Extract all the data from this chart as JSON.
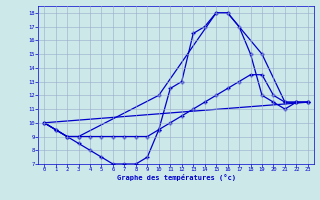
{
  "background_color": "#cce8e8",
  "grid_color": "#99aacc",
  "line_color": "#0000cc",
  "title": "Graphe des températures (°c)",
  "xlim": [
    -0.5,
    23.5
  ],
  "ylim": [
    7,
    18.5
  ],
  "xticks": [
    0,
    1,
    2,
    3,
    4,
    5,
    6,
    7,
    8,
    9,
    10,
    11,
    12,
    13,
    14,
    15,
    16,
    17,
    18,
    19,
    20,
    21,
    22,
    23
  ],
  "yticks": [
    7,
    8,
    9,
    10,
    11,
    12,
    13,
    14,
    15,
    16,
    17,
    18
  ],
  "series1_x": [
    0,
    1,
    2,
    3,
    4,
    5,
    6,
    7,
    8,
    9,
    10,
    11,
    12,
    13,
    14,
    15,
    16,
    17,
    18,
    19,
    20,
    21,
    22,
    23
  ],
  "series1_y": [
    10,
    9.5,
    9,
    8.5,
    8,
    7.5,
    7,
    7,
    7,
    7.5,
    9.5,
    12.5,
    13,
    16.5,
    17,
    18,
    18,
    17,
    15,
    12,
    11.5,
    11,
    11.5,
    11.5
  ],
  "series2_x": [
    0,
    2,
    3,
    10,
    15,
    16,
    19,
    21,
    22,
    23
  ],
  "series2_y": [
    10,
    9,
    9,
    12,
    18,
    18,
    15,
    11.5,
    11.5,
    11.5
  ],
  "series3_x": [
    0,
    1,
    2,
    3,
    4,
    5,
    6,
    7,
    8,
    9,
    10,
    11,
    12,
    13,
    14,
    15,
    16,
    17,
    18,
    19,
    20,
    21,
    22,
    23
  ],
  "series3_y": [
    10,
    9.5,
    9,
    9,
    9,
    9,
    9,
    9,
    9,
    9,
    9.5,
    10,
    10.5,
    11,
    11.5,
    12,
    12.5,
    13,
    13.5,
    13.5,
    12,
    11.5,
    11.5,
    11.5
  ],
  "series4_x": [
    0,
    23
  ],
  "series4_y": [
    10,
    11.5
  ]
}
